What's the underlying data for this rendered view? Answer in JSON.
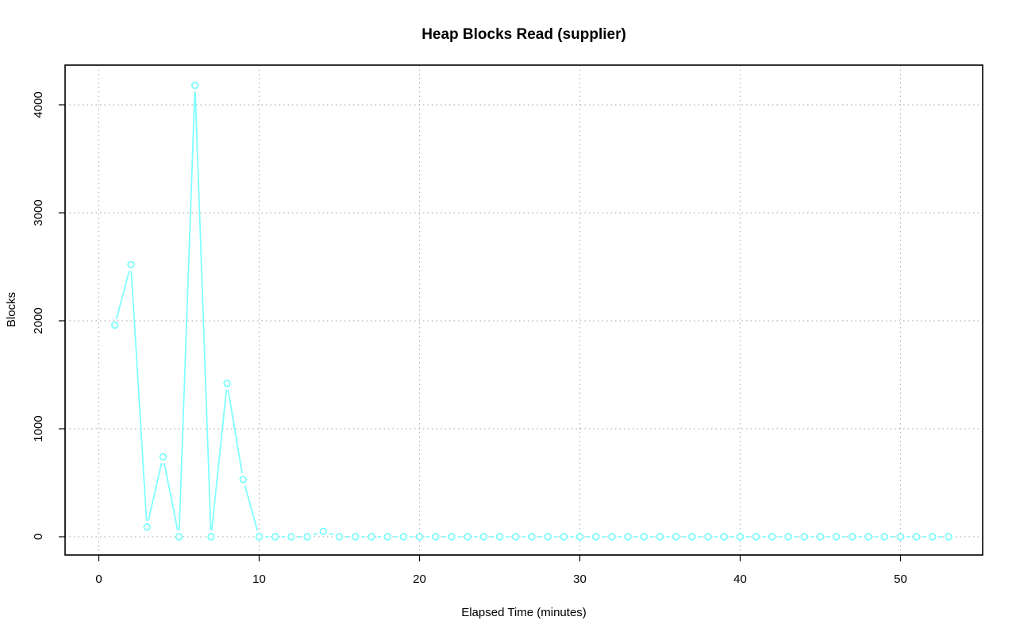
{
  "chart_data": {
    "type": "line",
    "title": "Heap Blocks Read (supplier)",
    "xlabel": "Elapsed Time (minutes)",
    "ylabel": "Blocks",
    "xlim": [
      0,
      55
    ],
    "ylim": [
      0,
      4200
    ],
    "x_ticks": [
      0,
      10,
      20,
      30,
      40,
      50
    ],
    "y_ticks": [
      0,
      1000,
      2000,
      3000,
      4000
    ],
    "grid": true,
    "legend": "none",
    "series_color": "#7fffff",
    "x": [
      1,
      2,
      3,
      4,
      5,
      6,
      7,
      8,
      9,
      10,
      11,
      12,
      13,
      14,
      15,
      16,
      17,
      18,
      19,
      20,
      21,
      22,
      23,
      24,
      25,
      26,
      27,
      28,
      29,
      30,
      31,
      32,
      33,
      34,
      35,
      36,
      37,
      38,
      39,
      40,
      41,
      42,
      43,
      44,
      45,
      46,
      47,
      48,
      49,
      50,
      51,
      52,
      53
    ],
    "y": [
      1960,
      2520,
      90,
      740,
      0,
      4180,
      0,
      1420,
      530,
      0,
      0,
      0,
      0,
      50,
      0,
      0,
      0,
      0,
      0,
      0,
      0,
      0,
      0,
      0,
      0,
      0,
      0,
      0,
      0,
      0,
      0,
      0,
      0,
      0,
      0,
      0,
      0,
      0,
      0,
      0,
      0,
      0,
      0,
      0,
      0,
      0,
      0,
      0,
      0,
      0,
      0,
      0,
      0
    ]
  }
}
